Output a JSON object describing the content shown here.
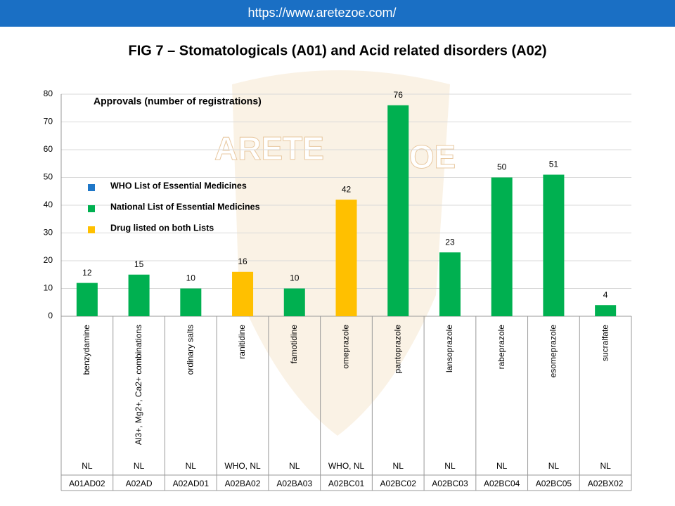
{
  "header": {
    "url": "https://www.aretezoe.com/"
  },
  "watermark": {
    "left": "ARETE",
    "right": "OE"
  },
  "chart_data": {
    "type": "bar",
    "title": "FIG 7 – Stomatologicals (A01) and Acid related disorders (A02)",
    "subtitle": "Approvals (number of registrations)",
    "categories": [
      "benzydamine",
      "Al3+, Mg2+, Ca2+ combinations",
      "ordinary salts",
      "ranitidine",
      "famotidine",
      "omeprazole",
      "pantoprazole",
      "lansoprazole",
      "rabeprazole",
      "esomeprazole",
      "sucralfate"
    ],
    "values": [
      12,
      15,
      10,
      16,
      10,
      42,
      76,
      23,
      50,
      51,
      4
    ],
    "colors": [
      "#00b050",
      "#00b050",
      "#00b050",
      "#ffc000",
      "#00b050",
      "#ffc000",
      "#00b050",
      "#00b050",
      "#00b050",
      "#00b050",
      "#00b050"
    ],
    "lists": [
      "NL",
      "NL",
      "NL",
      "WHO, NL",
      "NL",
      "WHO, NL",
      "NL",
      "NL",
      "NL",
      "NL",
      "NL"
    ],
    "atc_codes": [
      "A01AD02",
      "A02AD",
      "A02AD01",
      "A02BA02",
      "A02BA03",
      "A02BC01",
      "A02BC02",
      "A02BC03",
      "A02BC04",
      "A02BC05",
      "A02BX02"
    ],
    "legend": [
      {
        "name": "WHO List of Essential Medicines",
        "color": "#1f77c8"
      },
      {
        "name": "National List of Essential Medicines",
        "color": "#00b050"
      },
      {
        "name": "Drug listed on both Lists",
        "color": "#ffc000"
      }
    ],
    "ylim": [
      0,
      80
    ],
    "yticks": [
      0,
      10,
      20,
      30,
      40,
      50,
      60,
      70,
      80
    ],
    "grid": true
  }
}
